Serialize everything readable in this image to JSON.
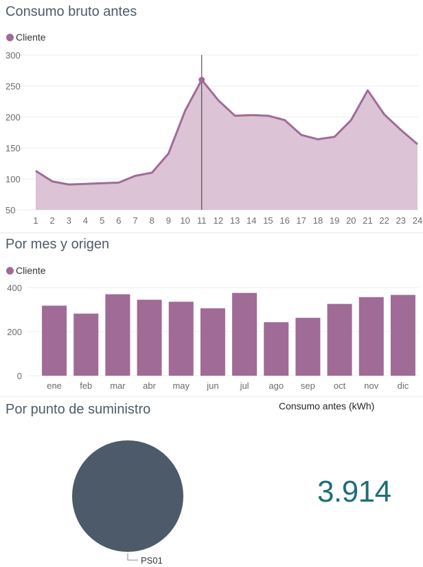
{
  "colors": {
    "series": "#a06b96",
    "area_fill": "#dcc3d6",
    "pie": "#4d5a69",
    "kpi": "#1f6e78"
  },
  "panel_hourly": {
    "title": "Consumo bruto antes",
    "legend_label": "Cliente"
  },
  "panel_monthly": {
    "title": "Por mes y origen",
    "legend_label": "Cliente"
  },
  "panel_supply": {
    "title": "Por punto de suministro",
    "kpi_label": "Consumo antes (kWh)",
    "kpi_value": "3.914"
  },
  "chart_data": [
    {
      "type": "area",
      "title": "Consumo bruto antes",
      "series": [
        {
          "name": "Cliente",
          "values": [
            113,
            96,
            91,
            92,
            93,
            94,
            105,
            110,
            141,
            210,
            260,
            227,
            202,
            203,
            202,
            195,
            171,
            164,
            168,
            195,
            243,
            204,
            179,
            156
          ]
        }
      ],
      "x": [
        1,
        2,
        3,
        4,
        5,
        6,
        7,
        8,
        9,
        10,
        11,
        12,
        13,
        14,
        15,
        16,
        17,
        18,
        19,
        20,
        21,
        22,
        23,
        24
      ],
      "ylim": [
        50,
        300
      ],
      "yticks": [
        50,
        100,
        150,
        200,
        250,
        300
      ],
      "highlight_x": 11,
      "grid": true,
      "legend": "top-left"
    },
    {
      "type": "bar",
      "title": "Por mes y origen",
      "categories": [
        "ene",
        "feb",
        "mar",
        "abr",
        "may",
        "jun",
        "jul",
        "ago",
        "sep",
        "oct",
        "nov",
        "dic"
      ],
      "series": [
        {
          "name": "Cliente",
          "values": [
            318,
            282,
            370,
            345,
            336,
            306,
            376,
            243,
            263,
            326,
            357,
            367
          ]
        }
      ],
      "ylim": [
        0,
        400
      ],
      "yticks": [
        0,
        200,
        400
      ],
      "grid": true,
      "legend": "top-left"
    },
    {
      "type": "pie",
      "title": "Por punto de suministro",
      "categories": [
        "PS01"
      ],
      "values": [
        100
      ]
    }
  ]
}
